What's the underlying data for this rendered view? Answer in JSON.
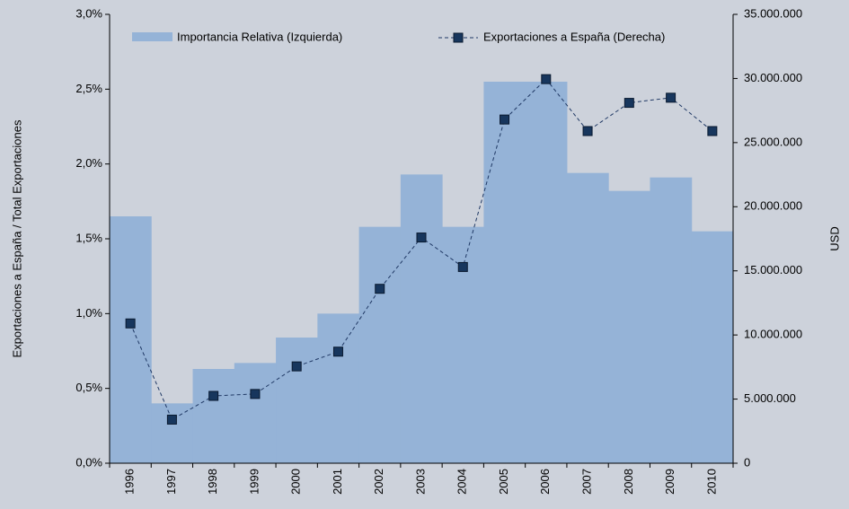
{
  "chart_data": {
    "type": "bar_line",
    "ylabel": "Exportaciones a  España / Total Exportaciones",
    "y2label": "USD",
    "categories": [
      "1996",
      "1997",
      "1998",
      "1999",
      "2000",
      "2001",
      "2002",
      "2003",
      "2004",
      "2005",
      "2006",
      "2007",
      "2008",
      "2009",
      "2010"
    ],
    "series": [
      {
        "name": "Importancia Relativa (Izquierda)",
        "type": "bar",
        "color": "#95b3d7",
        "values": [
          1.65,
          0.4,
          0.63,
          0.67,
          0.84,
          1.0,
          1.58,
          1.93,
          1.58,
          2.55,
          2.55,
          1.94,
          1.82,
          1.91,
          1.55
        ]
      },
      {
        "name": "Exportaciones a España (Derecha)",
        "type": "line",
        "axis": "y2",
        "color": "#1f3864",
        "values": [
          10900000,
          3400000,
          5250000,
          5400000,
          7550000,
          8700000,
          13600000,
          17600000,
          15300000,
          26800000,
          29950000,
          25900000,
          28100000,
          28500000,
          25900000
        ]
      }
    ],
    "ylim": [
      0,
      3.0
    ],
    "yticks": [
      {
        "value": 0,
        "label": "0,0%"
      },
      {
        "value": 0.5,
        "label": "0,5%"
      },
      {
        "value": 1.0,
        "label": "1,0%"
      },
      {
        "value": 1.5,
        "label": "1,5%"
      },
      {
        "value": 2.0,
        "label": "2,0%"
      },
      {
        "value": 2.5,
        "label": "2,5%"
      },
      {
        "value": 3.0,
        "label": "3,0%"
      }
    ],
    "y2lim": [
      0,
      35000000
    ],
    "y2ticks": [
      0,
      {
        "value": 5000000,
        "label": "5.000.000"
      },
      {
        "value": 10000000,
        "label": "10.000.000"
      },
      {
        "value": 15000000,
        "label": "15.000.000"
      },
      {
        "value": 20000000,
        "label": "20.000.000"
      },
      {
        "value": 25000000,
        "label": "25.000.000"
      },
      {
        "value": 30000000,
        "label": "30.000.000"
      },
      {
        "value": 35000000,
        "label": "35.000.000"
      }
    ],
    "legend": "top"
  }
}
